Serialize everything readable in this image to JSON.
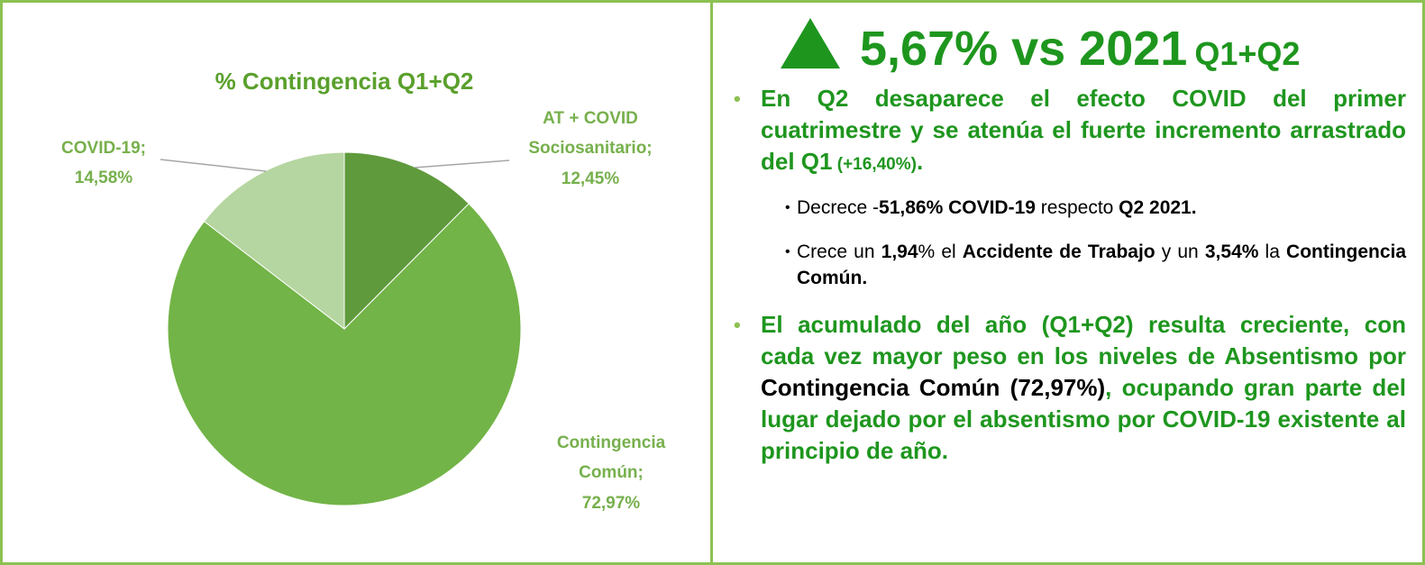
{
  "chart_data": {
    "type": "pie",
    "title": "% Contingencia Q1+Q2",
    "categories": [
      "AT + COVID Sociosanitario",
      "Contingencia Común",
      "COVID-19"
    ],
    "values": [
      12.45,
      72.97,
      14.58
    ],
    "value_labels": [
      "12,45%",
      "72,97%",
      "14,58%"
    ],
    "label_separator": ";",
    "colors": [
      "#5f9a3c",
      "#72b447",
      "#b5d6a0"
    ]
  },
  "headline": {
    "main": "5,67% vs 2021",
    "suffix": "Q1+Q2"
  },
  "bullets": [
    {
      "runs": [
        "En Q2 desaparece el efecto COVID del primer cuatrimestre y se atenúa el fuerte incremento arrastrado del Q1",
        " (+16,40%)",
        "."
      ],
      "sub": [
        [
          "Decrece -",
          "51,86% COVID-19",
          " respecto ",
          "Q2 2021."
        ],
        [
          "Crece un ",
          "1,94",
          "% el ",
          "Accidente de Trabajo",
          " y un ",
          "3,54%",
          " la ",
          "Contingencia Común."
        ]
      ]
    },
    {
      "runs": [
        "El acumulado del año (Q1+Q2) resulta creciente, con cada vez mayor peso en los niveles de Absentismo por ",
        "Contingencia Común (72,97%)",
        ", ocupando gran parte del lugar dejado por el absentismo por COVID-19 existente al principio de año."
      ]
    }
  ]
}
